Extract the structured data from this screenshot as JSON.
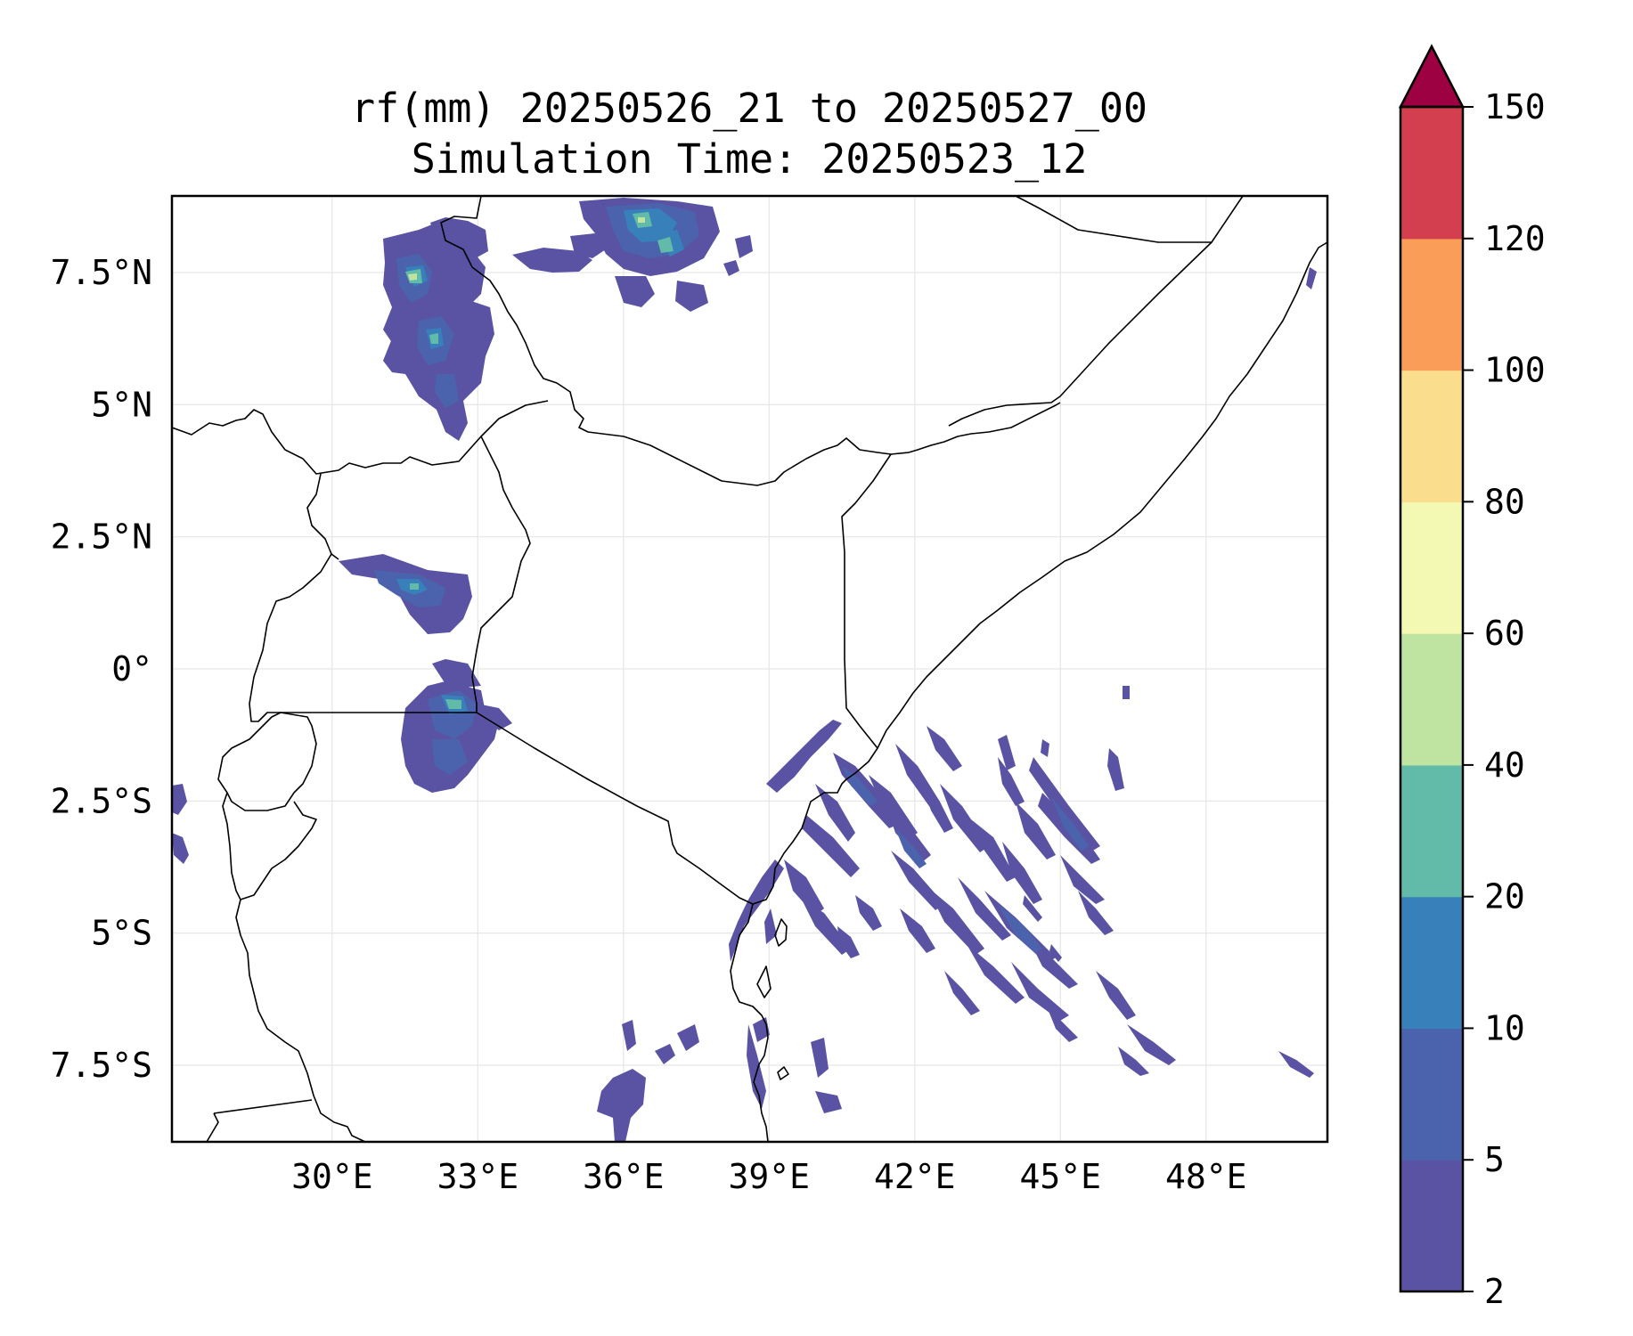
{
  "title": {
    "line1": "rf(mm) 20250526_21 to 20250527_00",
    "line2": "Simulation Time: 20250523_12"
  },
  "map": {
    "lon_range": [
      26.7,
      50.5
    ],
    "lat_range": [
      -8.95,
      8.95
    ],
    "x_ticks": [
      {
        "value": 30,
        "label": "30°E"
      },
      {
        "value": 33,
        "label": "33°E"
      },
      {
        "value": 36,
        "label": "36°E"
      },
      {
        "value": 39,
        "label": "39°E"
      },
      {
        "value": 42,
        "label": "42°E"
      },
      {
        "value": 45,
        "label": "45°E"
      },
      {
        "value": 48,
        "label": "48°E"
      }
    ],
    "y_ticks": [
      {
        "value": 7.5,
        "label": "7.5°N"
      },
      {
        "value": 5,
        "label": "5°N"
      },
      {
        "value": 2.5,
        "label": "2.5°N"
      },
      {
        "value": 0,
        "label": "0°"
      },
      {
        "value": -2.5,
        "label": "2.5°S"
      },
      {
        "value": -5,
        "label": "5°S"
      },
      {
        "value": -7.5,
        "label": "7.5°S"
      }
    ],
    "grid": true
  },
  "colorbar": {
    "levels": [
      2,
      5,
      10,
      20,
      40,
      60,
      80,
      100,
      120,
      150
    ],
    "level_labels": [
      "2",
      "5",
      "10",
      "20",
      "40",
      "60",
      "80",
      "100",
      "120",
      "150"
    ],
    "colors": [
      "#5a53a3",
      "#4b63ad",
      "#3880b9",
      "#62bba8",
      "#bfe3a0",
      "#f3f8b2",
      "#fbde8d",
      "#f99d59",
      "#d33f4e"
    ],
    "extend_color": "#9e0142",
    "extend": "max"
  }
}
